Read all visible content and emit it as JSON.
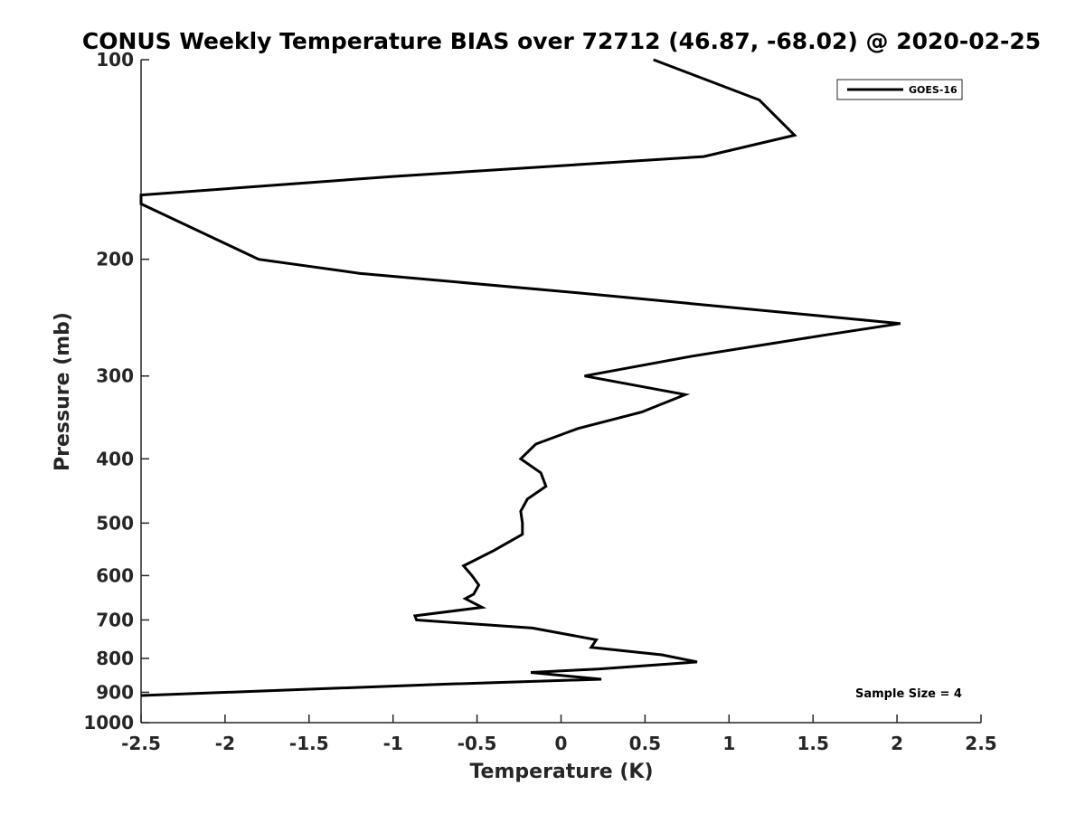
{
  "chart_data": {
    "type": "line",
    "title": "CONUS Weekly Temperature BIAS over 72712 (46.87, -68.02) @ 2020-02-25",
    "xlabel": "Temperature (K)",
    "ylabel": "Pressure (mb)",
    "xlim": [
      -2.5,
      2.5
    ],
    "ylim": [
      100,
      1000
    ],
    "y_scale": "log",
    "y_reversed": true,
    "x_ticks": [
      "-2.5",
      "-2",
      "-1.5",
      "-1",
      "-0.5",
      "0",
      "0.5",
      "1",
      "1.5",
      "2",
      "2.5"
    ],
    "y_ticks": [
      "100",
      "200",
      "300",
      "400",
      "500",
      "600",
      "700",
      "800",
      "900",
      "1000"
    ],
    "grid": false,
    "legend_position": "top-right",
    "annotation": "Sample Size = 4",
    "series": [
      {
        "name": "GOES-16",
        "color": "#000000",
        "points": [
          {
            "x": 0.55,
            "y": 100
          },
          {
            "x": 1.18,
            "y": 115
          },
          {
            "x": 1.39,
            "y": 130
          },
          {
            "x": 0.85,
            "y": 140
          },
          {
            "x": -1.0,
            "y": 150
          },
          {
            "x": -2.5,
            "y": 160
          },
          {
            "x": -2.5,
            "y": 165
          },
          {
            "x": -1.8,
            "y": 200
          },
          {
            "x": -1.2,
            "y": 210
          },
          {
            "x": 0.12,
            "y": 225
          },
          {
            "x": 2.02,
            "y": 250
          },
          {
            "x": 1.58,
            "y": 260
          },
          {
            "x": 0.78,
            "y": 280
          },
          {
            "x": 0.14,
            "y": 300
          },
          {
            "x": 0.74,
            "y": 320
          },
          {
            "x": 0.48,
            "y": 340
          },
          {
            "x": 0.1,
            "y": 360
          },
          {
            "x": -0.15,
            "y": 380
          },
          {
            "x": -0.24,
            "y": 400
          },
          {
            "x": -0.12,
            "y": 420
          },
          {
            "x": -0.09,
            "y": 440
          },
          {
            "x": -0.2,
            "y": 460
          },
          {
            "x": -0.24,
            "y": 480
          },
          {
            "x": -0.23,
            "y": 500
          },
          {
            "x": -0.23,
            "y": 520
          },
          {
            "x": -0.4,
            "y": 550
          },
          {
            "x": -0.58,
            "y": 580
          },
          {
            "x": -0.53,
            "y": 600
          },
          {
            "x": -0.49,
            "y": 620
          },
          {
            "x": -0.52,
            "y": 640
          },
          {
            "x": -0.57,
            "y": 650
          },
          {
            "x": -0.47,
            "y": 670
          },
          {
            "x": -0.87,
            "y": 690
          },
          {
            "x": -0.86,
            "y": 700
          },
          {
            "x": -0.17,
            "y": 720
          },
          {
            "x": 0.21,
            "y": 750
          },
          {
            "x": 0.18,
            "y": 770
          },
          {
            "x": 0.6,
            "y": 790
          },
          {
            "x": 0.81,
            "y": 810
          },
          {
            "x": 0.22,
            "y": 830
          },
          {
            "x": -0.18,
            "y": 840
          },
          {
            "x": 0.24,
            "y": 860
          },
          {
            "x": -0.7,
            "y": 875
          },
          {
            "x": -2.5,
            "y": 910
          }
        ]
      }
    ]
  }
}
